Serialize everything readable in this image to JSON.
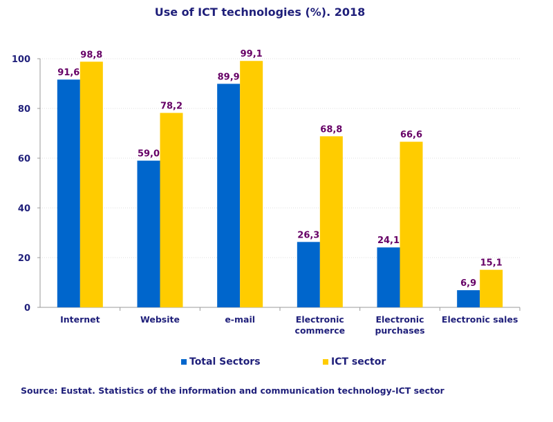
{
  "chart_data": {
    "type": "bar",
    "title": "Use of ICT technologies (%). 2018",
    "categories": [
      [
        "Internet"
      ],
      [
        "Website"
      ],
      [
        "e-mail"
      ],
      [
        "Electronic",
        "commerce"
      ],
      [
        "Electronic",
        "purchases"
      ],
      [
        "Electronic sales"
      ]
    ],
    "series": [
      {
        "name": "Total Sectors",
        "color": "#0066cc",
        "values": [
          91.6,
          59.0,
          89.9,
          26.3,
          24.1,
          6.9
        ],
        "labels": [
          "91,6",
          "59,0",
          "89,9",
          "26,3",
          "24,1",
          "6,9"
        ]
      },
      {
        "name": "ICT sector",
        "color": "#ffcc00",
        "values": [
          98.8,
          78.2,
          99.1,
          68.8,
          66.6,
          15.1
        ],
        "labels": [
          "98,8",
          "78,2",
          "99,1",
          "68,8",
          "66,6",
          "15,1"
        ]
      }
    ],
    "ylim": [
      0,
      100
    ],
    "yticks": [
      0,
      20,
      40,
      60,
      80,
      100
    ],
    "grid": true,
    "legend": "bottom",
    "label_color": "#660066",
    "axis_text_color": "#1f1f7a"
  },
  "source": "Source: Eustat. Statistics of the information and communication technology-ICT sector"
}
